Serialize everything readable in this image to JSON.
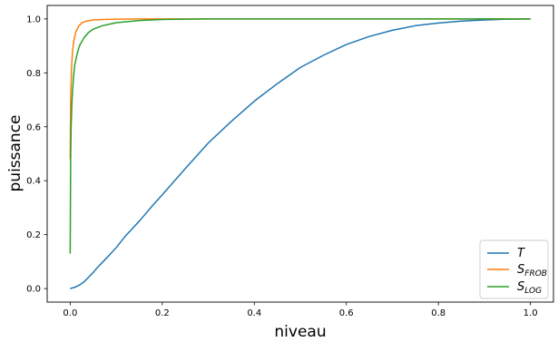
{
  "chart_data": {
    "type": "line",
    "xlabel": "niveau",
    "ylabel": "puissance",
    "xlim": [
      -0.05,
      1.05
    ],
    "ylim": [
      -0.05,
      1.05
    ],
    "x_ticks": [
      "0.0",
      "0.2",
      "0.4",
      "0.6",
      "0.8",
      "1.0"
    ],
    "y_ticks": [
      "0.0",
      "0.2",
      "0.4",
      "0.6",
      "0.8",
      "1.0"
    ],
    "grid": false,
    "legend_position": "bottom-right",
    "series": [
      {
        "name": "T",
        "label_main": "T",
        "label_sub": "",
        "color": "#1f77b4",
        "x": [
          0.0,
          0.01,
          0.02,
          0.03,
          0.04,
          0.05,
          0.06,
          0.08,
          0.1,
          0.12,
          0.15,
          0.18,
          0.2,
          0.25,
          0.3,
          0.35,
          0.4,
          0.45,
          0.5,
          0.55,
          0.6,
          0.65,
          0.7,
          0.75,
          0.8,
          0.85,
          0.9,
          0.95,
          1.0
        ],
        "y": [
          0.0,
          0.005,
          0.013,
          0.025,
          0.042,
          0.06,
          0.08,
          0.115,
          0.152,
          0.195,
          0.25,
          0.31,
          0.348,
          0.445,
          0.54,
          0.62,
          0.695,
          0.76,
          0.82,
          0.865,
          0.905,
          0.935,
          0.958,
          0.975,
          0.985,
          0.992,
          0.996,
          0.999,
          1.0
        ]
      },
      {
        "name": "S_FROB",
        "label_main": "S",
        "label_sub": "FROB",
        "color": "#ff7f0e",
        "x": [
          0.0,
          0.001,
          0.003,
          0.005,
          0.008,
          0.012,
          0.018,
          0.025,
          0.035,
          0.05,
          0.07,
          0.1,
          0.15,
          0.2,
          0.3,
          0.5,
          1.0
        ],
        "y": [
          0.48,
          0.7,
          0.82,
          0.88,
          0.92,
          0.95,
          0.972,
          0.985,
          0.992,
          0.996,
          0.998,
          0.999,
          1.0,
          1.0,
          1.0,
          1.0,
          1.0
        ]
      },
      {
        "name": "S_LOG",
        "label_main": "S",
        "label_sub": "LOG",
        "color": "#2ca02c",
        "x": [
          0.0,
          0.001,
          0.002,
          0.004,
          0.007,
          0.01,
          0.015,
          0.02,
          0.03,
          0.04,
          0.05,
          0.07,
          0.1,
          0.15,
          0.2,
          0.25,
          0.3,
          0.5,
          1.0
        ],
        "y": [
          0.13,
          0.48,
          0.6,
          0.7,
          0.78,
          0.83,
          0.87,
          0.9,
          0.93,
          0.95,
          0.962,
          0.975,
          0.986,
          0.994,
          0.998,
          0.999,
          1.0,
          1.0,
          1.0
        ]
      }
    ]
  }
}
